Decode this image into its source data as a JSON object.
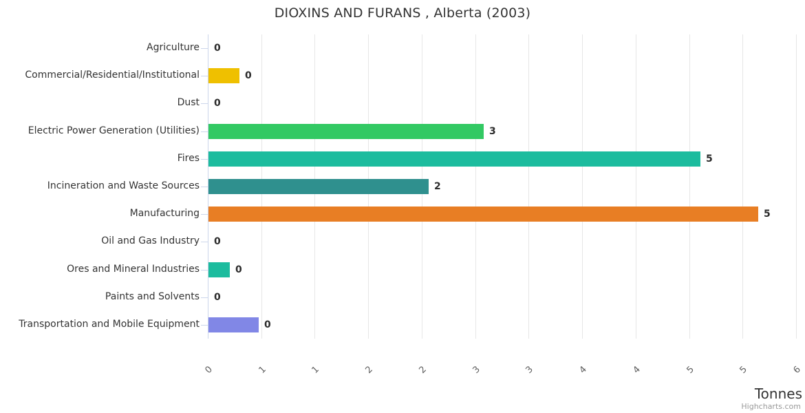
{
  "chart": {
    "title": "DIOXINS AND FURANS , Alberta (2003)",
    "x_axis_title": "Tonnes",
    "credit": "Highcharts.com"
  },
  "chart_data": {
    "type": "bar",
    "orientation": "horizontal",
    "title": "DIOXINS AND FURANS , Alberta (2003)",
    "xlabel": "Tonnes",
    "ylabel": "",
    "categories": [
      "Agriculture",
      "Commercial/Residential/Institutional",
      "Dust",
      "Electric Power Generation (Utilities)",
      "Fires",
      "Incineration and Waste Sources",
      "Manufacturing",
      "Oil and Gas Industry",
      "Ores and Mineral Industries",
      "Paints and Solvents",
      "Transportation and Mobile Equipment"
    ],
    "values": [
      0,
      0.29,
      0,
      2.57,
      4.6,
      2.06,
      5.14,
      0,
      0.2,
      0,
      0.47
    ],
    "value_labels": [
      "0",
      "0",
      "0",
      "3",
      "5",
      "2",
      "5",
      "0",
      "0",
      "0",
      "0"
    ],
    "bar_colors": [
      null,
      "#efc000",
      null,
      "#32c963",
      "#1cbc9e",
      "#2f908e",
      "#e87e24",
      null,
      "#1cbc9e",
      null,
      "#8187e6"
    ],
    "xlim": [
      0,
      5.5
    ],
    "xtick_labels": [
      "0",
      "1",
      "1",
      "2",
      "2",
      "3",
      "3",
      "4",
      "4",
      "5",
      "5",
      "6"
    ],
    "xtick_rotation": -45,
    "grid": true,
    "legend": false,
    "grid_color": "#e6e6e6",
    "axis_line_color": "#ccd6eb"
  }
}
